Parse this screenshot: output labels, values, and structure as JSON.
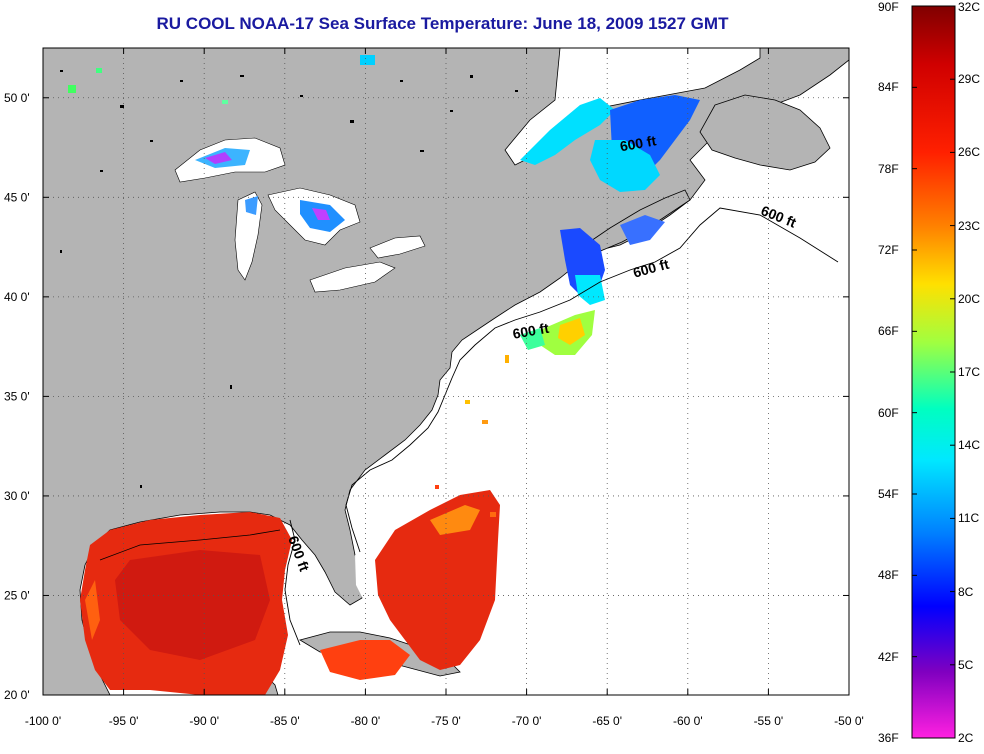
{
  "title": "RU COOL  NOAA-17  Sea Surface Temperature:  June 18, 2009 1527 GMT",
  "map": {
    "lon_range": [
      -100,
      -50
    ],
    "lat_range": [
      20,
      52.5
    ],
    "lon_ticks": [
      {
        "v": -100,
        "label": "-100 0'"
      },
      {
        "v": -95,
        "label": "-95 0'"
      },
      {
        "v": -90,
        "label": "-90 0'"
      },
      {
        "v": -85,
        "label": "-85 0'"
      },
      {
        "v": -80,
        "label": "-80 0'"
      },
      {
        "v": -75,
        "label": "-75 0'"
      },
      {
        "v": -70,
        "label": "-70 0'"
      },
      {
        "v": -65,
        "label": "-65 0'"
      },
      {
        "v": -60,
        "label": "-60 0'"
      },
      {
        "v": -55,
        "label": "-55 0'"
      },
      {
        "v": -50,
        "label": "-50 0'"
      }
    ],
    "lat_ticks": [
      {
        "v": 50,
        "label": "50 0'"
      },
      {
        "v": 45,
        "label": "45 0'"
      },
      {
        "v": 40,
        "label": "40 0'"
      },
      {
        "v": 35,
        "label": "35 0'"
      },
      {
        "v": 30,
        "label": "30 0'"
      },
      {
        "v": 25,
        "label": "25 0'"
      },
      {
        "v": 20,
        "label": "20 0'"
      }
    ],
    "contour_labels": [
      "600 ft",
      "600 ft",
      "600 ft",
      "600 ft",
      "600 ft"
    ],
    "colors": {
      "land": "#b4b4b4",
      "ocean": "#ffffff",
      "grid": "#555555"
    }
  },
  "colorbar": {
    "fahrenheit_labels": [
      "90F",
      "84F",
      "78F",
      "72F",
      "66F",
      "60F",
      "54F",
      "48F",
      "42F",
      "36F"
    ],
    "celsius_labels": [
      "32C",
      "29C",
      "26C",
      "23C",
      "20C",
      "17C",
      "14C",
      "11C",
      "8C",
      "5C",
      "2C"
    ],
    "colors": [
      "#800000",
      "#ff0000",
      "#ff8000",
      "#ffff00",
      "#80ff80",
      "#00ffff",
      "#0080ff",
      "#0000ff",
      "#8000c0",
      "#ff00ff"
    ]
  }
}
